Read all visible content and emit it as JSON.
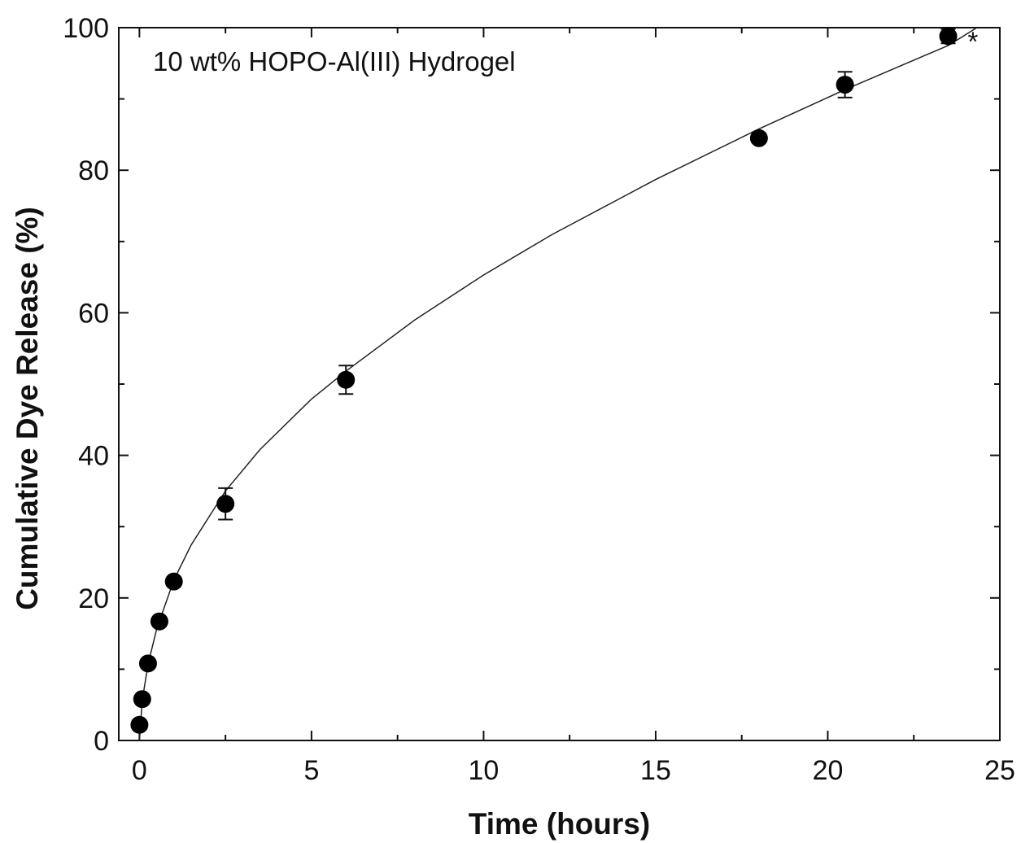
{
  "chart_data": {
    "type": "scatter",
    "title": "",
    "annotation": "10 wt% HOPO-Al(III) Hydrogel",
    "marker_note": "*",
    "xlabel": "Time (hours)",
    "ylabel": "Cumulative Dye Release (%)",
    "xlim": [
      -0.6,
      25
    ],
    "ylim": [
      0,
      100
    ],
    "x_ticks": [
      0,
      5,
      10,
      15,
      20,
      25
    ],
    "y_ticks": [
      0,
      20,
      40,
      60,
      80,
      100
    ],
    "x_tick_labels": [
      "0",
      "5",
      "10",
      "15",
      "20",
      "25"
    ],
    "y_tick_labels": [
      "0",
      "20",
      "40",
      "60",
      "80",
      "100"
    ],
    "grid": false,
    "series": [
      {
        "points": [
          {
            "x": 0.0,
            "y": 2.2,
            "err": 0
          },
          {
            "x": 0.08,
            "y": 5.8,
            "err": 0
          },
          {
            "x": 0.25,
            "y": 10.8,
            "err": 0
          },
          {
            "x": 0.58,
            "y": 16.7,
            "err": 0
          },
          {
            "x": 1.0,
            "y": 22.3,
            "err": 0
          },
          {
            "x": 2.5,
            "y": 33.2,
            "err": 2.2
          },
          {
            "x": 6.0,
            "y": 50.6,
            "err": 2.0
          },
          {
            "x": 18.0,
            "y": 84.5,
            "err": 0
          },
          {
            "x": 20.5,
            "y": 92.0,
            "err": 1.8
          },
          {
            "x": 23.5,
            "y": 98.8,
            "err": 1.0
          }
        ]
      }
    ],
    "fit": {
      "x": [
        0,
        0.08,
        0.25,
        0.5,
        1,
        1.5,
        2.5,
        3.5,
        5,
        6,
        8,
        10,
        12,
        15,
        18,
        20.5,
        23.5,
        24.3
      ],
      "y": [
        0,
        5.6,
        10.7,
        15.6,
        22.5,
        27.4,
        35.0,
        40.8,
        47.9,
        51.8,
        59.0,
        65.3,
        71.0,
        78.7,
        85.8,
        91.3,
        97.5,
        99.9
      ]
    },
    "colors": {
      "marker": "#000000",
      "line": "#222222",
      "axis": "#111111"
    }
  }
}
